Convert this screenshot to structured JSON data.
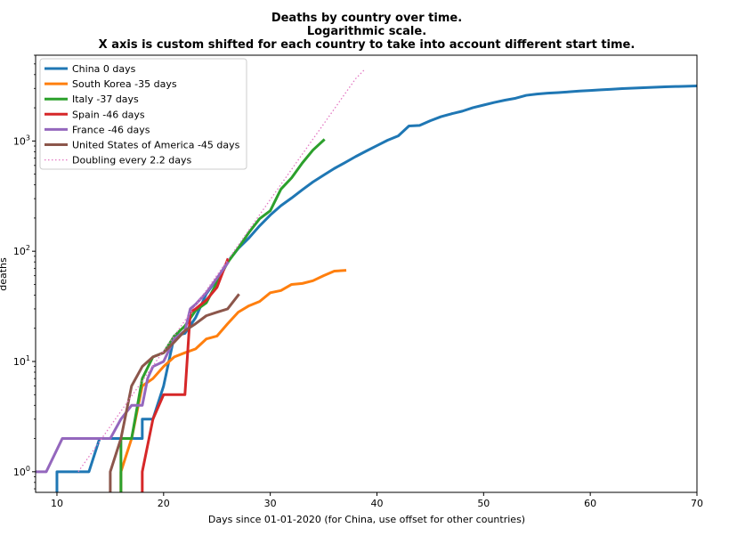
{
  "chart_data": {
    "type": "line",
    "title_lines": [
      "Deaths by country over time.",
      "Logarithmic scale.",
      "X axis is custom shifted for each country to take into account different start time."
    ],
    "xlabel": "Days since 01-01-2020 (for China, use offset for other countries)",
    "ylabel": "deaths",
    "xlim": [
      8,
      70
    ],
    "ylim": [
      0.65,
      6000
    ],
    "y_scale": "log",
    "x_ticks": [
      10,
      20,
      30,
      40,
      50,
      60,
      70
    ],
    "y_ticks": [
      {
        "value": 1,
        "base": "10",
        "exp": "0"
      },
      {
        "value": 10,
        "base": "10",
        "exp": "1"
      },
      {
        "value": 100,
        "base": "10",
        "exp": "2"
      },
      {
        "value": 1000,
        "base": "10",
        "exp": "3"
      }
    ],
    "grid": false,
    "legend_position": "top-left",
    "series": [
      {
        "name": "China 0 days",
        "color": "#1f77b4",
        "style": "solid",
        "points": [
          [
            10,
            0.6
          ],
          [
            10,
            1
          ],
          [
            13,
            1
          ],
          [
            14,
            2
          ],
          [
            18,
            2
          ],
          [
            18,
            3
          ],
          [
            19,
            3
          ],
          [
            20,
            6
          ],
          [
            21,
            17
          ],
          [
            22,
            18
          ],
          [
            23,
            25
          ],
          [
            24,
            41
          ],
          [
            25,
            56
          ],
          [
            26,
            80
          ],
          [
            27,
            106
          ],
          [
            28,
            132
          ],
          [
            29,
            170
          ],
          [
            30,
            213
          ],
          [
            31,
            259
          ],
          [
            32,
            304
          ],
          [
            33,
            361
          ],
          [
            34,
            425
          ],
          [
            35,
            490
          ],
          [
            36,
            563
          ],
          [
            37,
            636
          ],
          [
            38,
            722
          ],
          [
            39,
            811
          ],
          [
            40,
            908
          ],
          [
            41,
            1016
          ],
          [
            42,
            1113
          ],
          [
            43,
            1368
          ],
          [
            44,
            1383
          ],
          [
            45,
            1526
          ],
          [
            46,
            1662
          ],
          [
            47,
            1766
          ],
          [
            48,
            1864
          ],
          [
            49,
            2004
          ],
          [
            50,
            2118
          ],
          [
            51,
            2236
          ],
          [
            52,
            2345
          ],
          [
            53,
            2442
          ],
          [
            54,
            2595
          ],
          [
            55,
            2666
          ],
          [
            56,
            2718
          ],
          [
            57,
            2747
          ],
          [
            58,
            2790
          ],
          [
            59,
            2838
          ],
          [
            60,
            2873
          ],
          [
            61,
            2915
          ],
          [
            62,
            2946
          ],
          [
            63,
            2984
          ],
          [
            64,
            3015
          ],
          [
            65,
            3045
          ],
          [
            66,
            3073
          ],
          [
            67,
            3100
          ],
          [
            68,
            3119
          ],
          [
            69,
            3136
          ],
          [
            70,
            3158
          ]
        ]
      },
      {
        "name": "South Korea -35 days",
        "color": "#ff7f0e",
        "style": "solid",
        "points": [
          [
            16,
            0.6
          ],
          [
            16,
            1
          ],
          [
            17,
            2
          ],
          [
            18,
            6
          ],
          [
            19,
            7
          ],
          [
            20,
            9
          ],
          [
            21,
            11
          ],
          [
            22,
            12
          ],
          [
            23,
            13
          ],
          [
            24,
            16
          ],
          [
            25,
            17
          ],
          [
            26,
            22
          ],
          [
            27,
            28
          ],
          [
            28,
            32
          ],
          [
            29,
            35
          ],
          [
            30,
            42
          ],
          [
            31,
            44
          ],
          [
            32,
            50
          ],
          [
            33,
            51
          ],
          [
            34,
            54
          ],
          [
            35,
            60
          ],
          [
            36,
            66
          ],
          [
            37,
            67
          ]
        ]
      },
      {
        "name": "Italy -37 days",
        "color": "#2ca02c",
        "style": "solid",
        "points": [
          [
            16,
            0.6
          ],
          [
            16,
            2
          ],
          [
            17,
            2
          ],
          [
            18,
            7
          ],
          [
            19,
            11
          ],
          [
            20,
            12
          ],
          [
            21,
            17
          ],
          [
            22,
            21
          ],
          [
            23,
            29
          ],
          [
            24,
            34
          ],
          [
            25,
            52
          ],
          [
            26,
            79
          ],
          [
            27,
            107
          ],
          [
            28,
            148
          ],
          [
            29,
            197
          ],
          [
            30,
            233
          ],
          [
            31,
            366
          ],
          [
            32,
            463
          ],
          [
            33,
            631
          ],
          [
            34,
            827
          ],
          [
            35,
            1016
          ]
        ]
      },
      {
        "name": "Spain -46 days",
        "color": "#d62728",
        "style": "solid",
        "points": [
          [
            18,
            0.6
          ],
          [
            18,
            1
          ],
          [
            19,
            3
          ],
          [
            20,
            5
          ],
          [
            21,
            5
          ],
          [
            22,
            5
          ],
          [
            22.5,
            28
          ],
          [
            23,
            30
          ],
          [
            24,
            36
          ],
          [
            25,
            47
          ],
          [
            26,
            84
          ]
        ]
      },
      {
        "name": "France -46 days",
        "color": "#9467bd",
        "style": "solid",
        "points": [
          [
            8,
            1
          ],
          [
            9,
            1
          ],
          [
            10.5,
            2
          ],
          [
            15,
            2
          ],
          [
            16,
            3
          ],
          [
            17,
            4
          ],
          [
            18,
            4
          ],
          [
            18.5,
            7
          ],
          [
            19,
            9
          ],
          [
            20,
            10
          ],
          [
            21,
            16
          ],
          [
            22,
            19
          ],
          [
            22.5,
            30
          ],
          [
            23,
            33
          ],
          [
            24,
            42
          ],
          [
            25,
            57
          ],
          [
            26,
            78
          ]
        ]
      },
      {
        "name": "United States of America -45 days",
        "color": "#8c564b",
        "style": "solid",
        "points": [
          [
            15,
            0.6
          ],
          [
            15,
            1
          ],
          [
            16,
            2
          ],
          [
            17,
            6
          ],
          [
            18,
            9
          ],
          [
            19,
            11
          ],
          [
            20,
            12
          ],
          [
            21,
            15
          ],
          [
            22,
            19
          ],
          [
            23,
            22
          ],
          [
            24,
            26
          ],
          [
            25,
            28
          ],
          [
            26,
            30
          ],
          [
            27,
            40
          ]
        ]
      },
      {
        "name": "Doubling every 2.2 days",
        "color": "#e377c2",
        "style": "dotted",
        "points": [
          [
            12,
            1
          ],
          [
            14,
            1.88
          ],
          [
            16,
            3.54
          ],
          [
            18,
            6.65
          ],
          [
            20,
            12.5
          ],
          [
            22,
            23.5
          ],
          [
            24,
            44.2
          ],
          [
            26,
            83
          ],
          [
            28,
            156
          ],
          [
            30,
            294
          ],
          [
            32,
            553
          ],
          [
            34,
            1040
          ],
          [
            36,
            1950
          ],
          [
            37,
            2680
          ],
          [
            38,
            3670
          ],
          [
            38.8,
            4400
          ]
        ]
      }
    ]
  }
}
